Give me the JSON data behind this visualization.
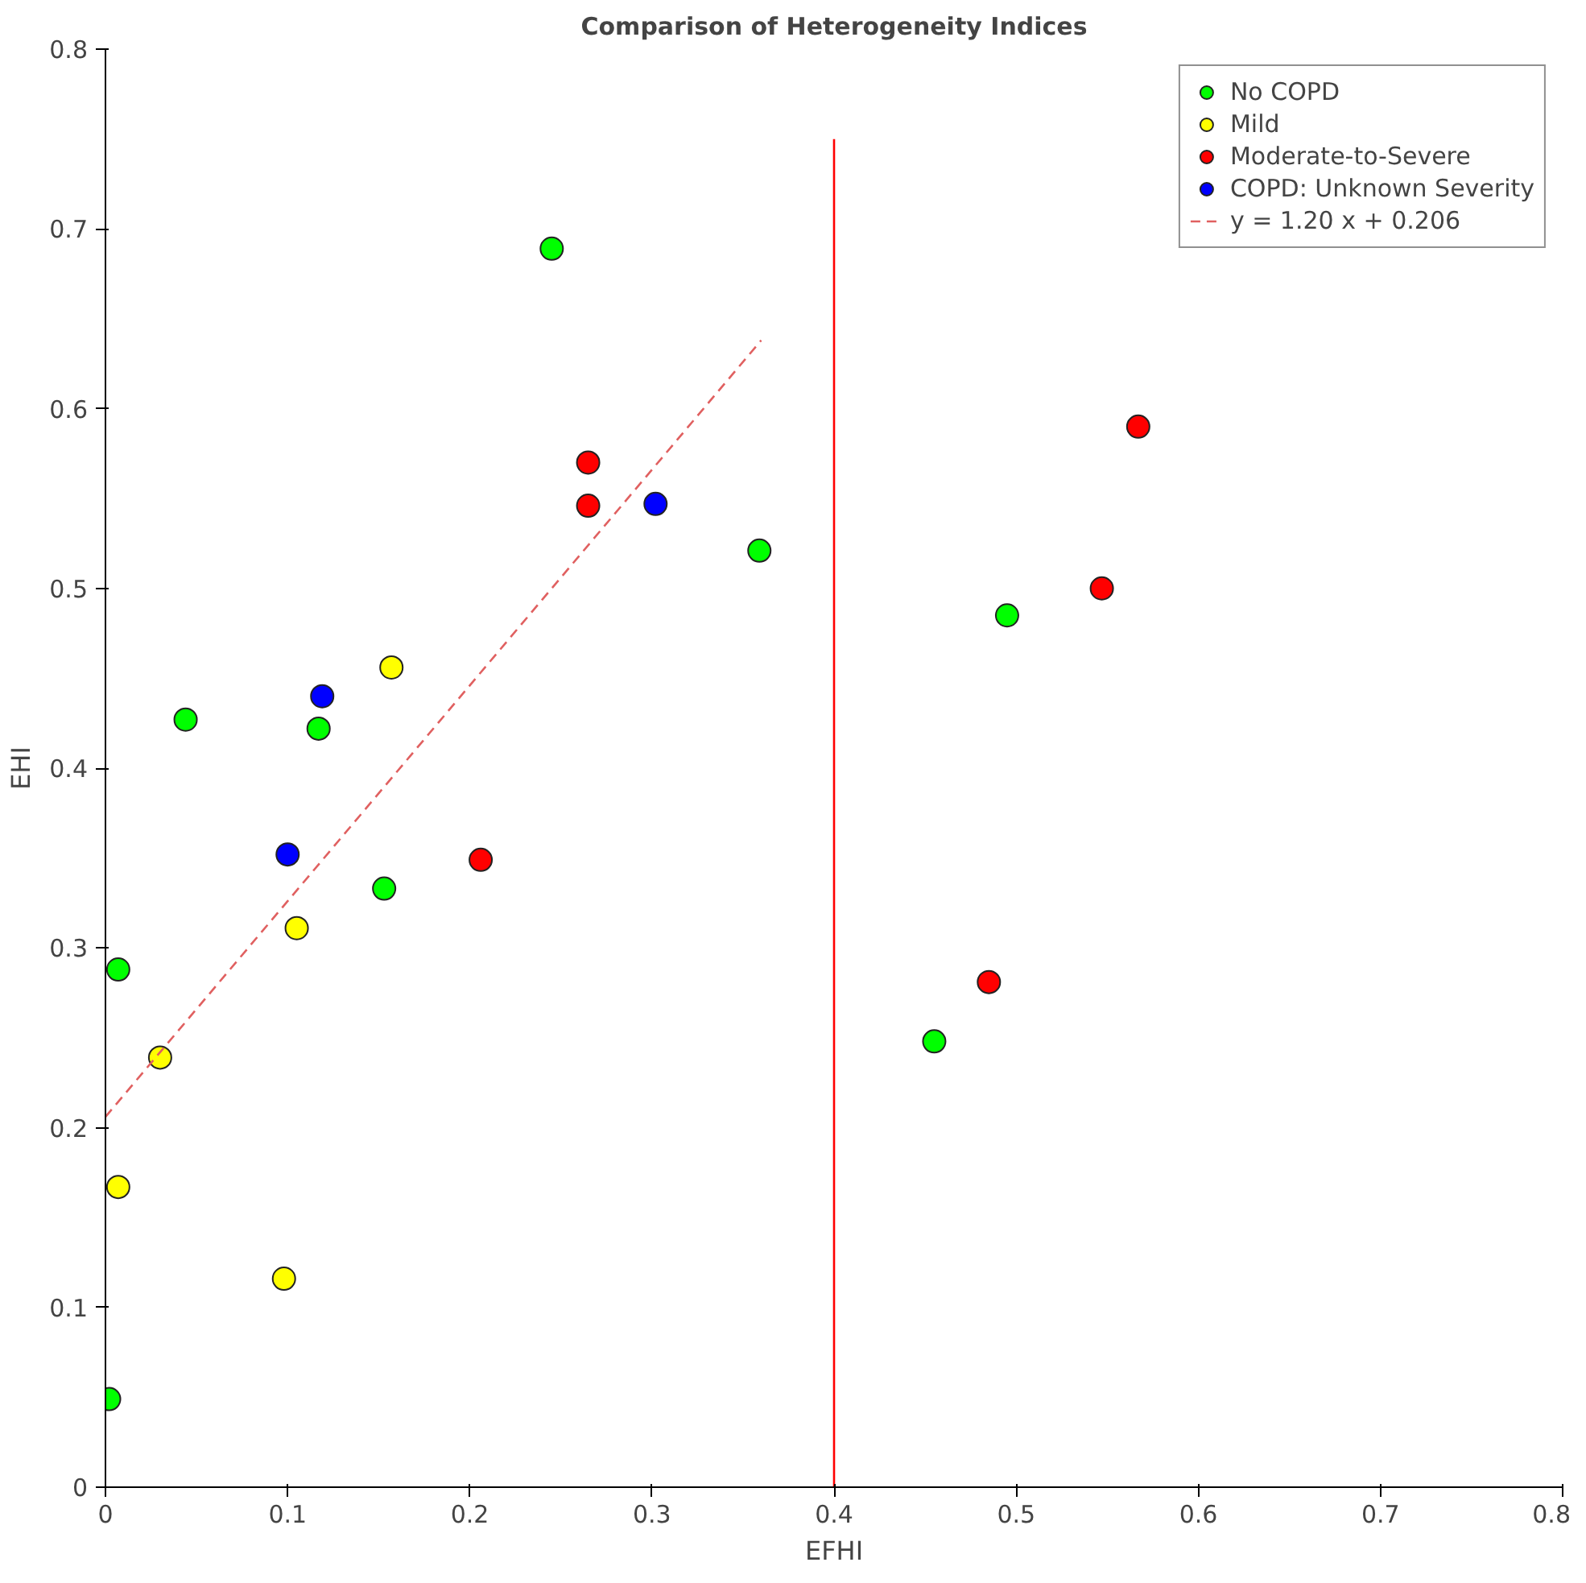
{
  "chart_data": {
    "type": "scatter",
    "title": "Comparison of Heterogeneity Indices",
    "xlabel": "EFHI",
    "ylabel": "EHI",
    "xlim": [
      0,
      0.8
    ],
    "ylim": [
      0,
      0.8
    ],
    "xticks": [
      0,
      0.1,
      0.2,
      0.3,
      0.4,
      0.5,
      0.6,
      0.7,
      0.8
    ],
    "yticks": [
      0,
      0.1,
      0.2,
      0.3,
      0.4,
      0.5,
      0.6,
      0.7,
      0.8
    ],
    "grid": false,
    "legend": "top right",
    "series": [
      {
        "name": "No COPD",
        "marker": "circle",
        "color": "#00ff00",
        "x": [
          0.245,
          0.359,
          0.117,
          0.044,
          0.153,
          0.007,
          0.002,
          0.455,
          0.495
        ],
        "values": [
          0.689,
          0.521,
          0.422,
          0.427,
          0.333,
          0.288,
          0.049,
          0.248,
          0.485
        ]
      },
      {
        "name": "Mild",
        "marker": "circle",
        "color": "#ffff00",
        "x": [
          0.157,
          0.105,
          0.03,
          0.007,
          0.098
        ],
        "values": [
          0.456,
          0.311,
          0.239,
          0.167,
          0.116
        ]
      },
      {
        "name": "Moderate-to-Severe",
        "marker": "circle",
        "color": "#ff0000",
        "x": [
          0.265,
          0.265,
          0.206,
          0.485,
          0.547,
          0.567
        ],
        "values": [
          0.57,
          0.546,
          0.349,
          0.281,
          0.5,
          0.59
        ]
      },
      {
        "name": "COPD: Unknown Severity",
        "marker": "circle",
        "color": "#0000ff",
        "x": [
          0.302,
          0.119,
          0.1
        ],
        "values": [
          0.547,
          0.44,
          0.352
        ]
      },
      {
        "name": "y = 1.20 x + 0.206",
        "type": "line",
        "line_style": "dashed",
        "marker": "none",
        "color": "#e06060",
        "x": [
          0,
          0.36
        ],
        "values": [
          0.206,
          0.638
        ]
      },
      {
        "type": "line",
        "line_style": "solid",
        "marker": "none",
        "color": "#ff0000",
        "x": [
          0.4,
          0.4
        ],
        "values": [
          0,
          0.75
        ]
      }
    ]
  }
}
